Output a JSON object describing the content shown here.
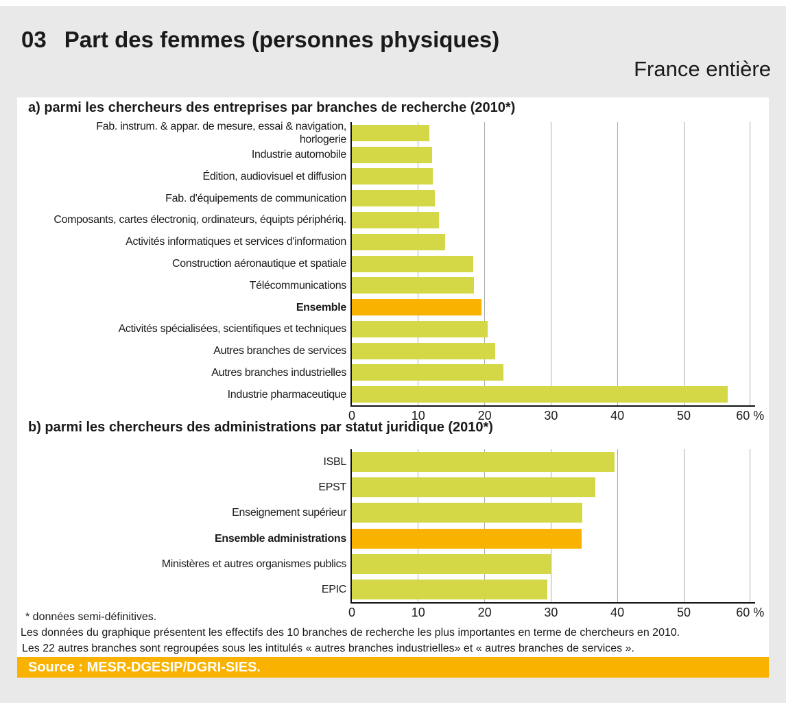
{
  "page": {
    "number": "03",
    "title": "Part des femmes (personnes physiques)",
    "region": "France entière"
  },
  "colors": {
    "bar": "#d4d846",
    "highlight": "#f9b200",
    "band": "#f9b200",
    "background": "#e9e9e9",
    "gridline": "#a6aca9",
    "axis": "#111111"
  },
  "footnotes": {
    "line1": "* données semi-définitives.",
    "line2": "Les données du graphique présentent les effectifs des 10 branches de recherche les plus importantes en terme de chercheurs en 2010.",
    "line3": "Les 22 autres branches sont regroupées sous les intitulés « autres branches industrielles» et « autres branches de services »."
  },
  "source": "Source : MESR-DGESIP/DGRI-SIES.",
  "chart_data": [
    {
      "id": "a",
      "type": "bar",
      "orientation": "horizontal",
      "title": "a) parmi les chercheurs des entreprises par branches de recherche (2010*)",
      "categories": [
        "Fab. instrum. & appar. de mesure, essai & navigation,\nhorlogerie",
        "Industrie automobile",
        "Édition, audiovisuel et diffusion",
        "Fab. d'équipements de communication",
        "Composants, cartes électroniq, ordinateurs, équipts périphériq.",
        "Activités informatiques et services d'information",
        "Construction aéronautique et spatiale",
        "Télécommunications",
        "Ensemble",
        "Activités spécialisées, scientifiques et techniques",
        "Autres branches de services",
        "Autres branches industrielles",
        "Industrie pharmaceutique"
      ],
      "values": [
        11.7,
        12.1,
        12.2,
        12.5,
        13.1,
        14.1,
        18.3,
        18.4,
        19.5,
        20.5,
        21.6,
        22.8,
        56.6
      ],
      "highlight_index": 8,
      "xlim": [
        0,
        60
      ],
      "ticks": [
        "0",
        "10",
        "20",
        "30",
        "40",
        "50",
        "60 %"
      ],
      "unit": "%",
      "grid": true,
      "legend": false
    },
    {
      "id": "b",
      "type": "bar",
      "orientation": "horizontal",
      "title": "b) parmi les chercheurs des administrations par statut juridique (2010*)",
      "categories": [
        "ISBL",
        "EPST",
        "Enseignement supérieur",
        "Ensemble administrations",
        "Ministères et autres organismes publics",
        "EPIC"
      ],
      "values": [
        39.6,
        36.7,
        34.7,
        34.6,
        30.0,
        29.4
      ],
      "highlight_index": 3,
      "xlim": [
        0,
        60
      ],
      "ticks": [
        "0",
        "10",
        "20",
        "30",
        "40",
        "50",
        "60 %"
      ],
      "unit": "%",
      "grid": true,
      "legend": false
    }
  ]
}
